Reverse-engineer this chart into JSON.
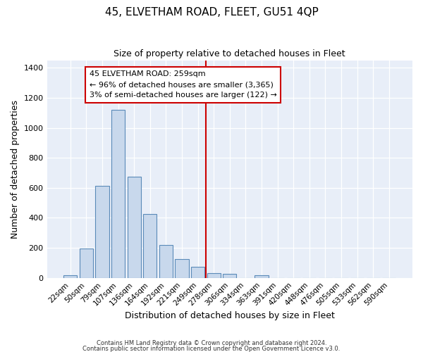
{
  "title": "45, ELVETHAM ROAD, FLEET, GU51 4QP",
  "subtitle": "Size of property relative to detached houses in Fleet",
  "xlabel": "Distribution of detached houses by size in Fleet",
  "ylabel": "Number of detached properties",
  "bar_labels": [
    "22sqm",
    "50sqm",
    "79sqm",
    "107sqm",
    "136sqm",
    "164sqm",
    "192sqm",
    "221sqm",
    "249sqm",
    "278sqm",
    "306sqm",
    "334sqm",
    "363sqm",
    "391sqm",
    "420sqm",
    "448sqm",
    "476sqm",
    "505sqm",
    "533sqm",
    "562sqm",
    "590sqm"
  ],
  "bar_values": [
    18,
    195,
    615,
    1120,
    675,
    425,
    220,
    125,
    75,
    30,
    28,
    0,
    18,
    0,
    0,
    0,
    0,
    0,
    0,
    0,
    0
  ],
  "bar_color": "#c8d8ec",
  "bar_edge_color": "#5a8ab8",
  "plot_bg_color": "#e8eef8",
  "fig_bg_color": "#ffffff",
  "grid_color": "#ffffff",
  "vline_x": 8.5,
  "vline_color": "#cc0000",
  "annotation_line1": "45 ELVETHAM ROAD: 259sqm",
  "annotation_line2": "← 96% of detached houses are smaller (3,365)",
  "annotation_line3": "3% of semi-detached houses are larger (122) →",
  "ylim": [
    0,
    1450
  ],
  "footnote1": "Contains HM Land Registry data © Crown copyright and database right 2024.",
  "footnote2": "Contains public sector information licensed under the Open Government Licence v3.0."
}
